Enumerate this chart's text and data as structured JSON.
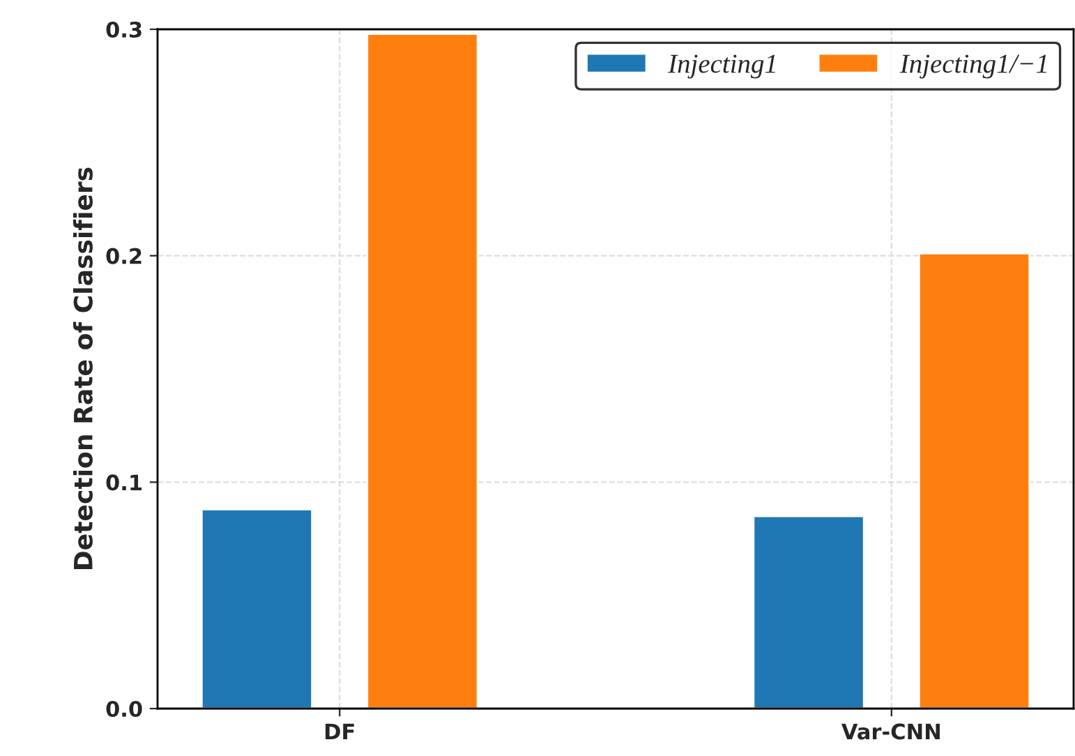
{
  "chart_data": {
    "type": "bar",
    "ylabel": "Detection Rate of Classifiers",
    "categories": [
      "DF",
      "Var-CNN"
    ],
    "series": [
      {
        "name": "Injecting1",
        "color": "#1f77b4",
        "values": [
          0.088,
          0.085
        ]
      },
      {
        "name": "Injecting1/−1",
        "color": "#ff7f0e",
        "values": [
          0.298,
          0.201
        ]
      }
    ],
    "ylim": [
      0,
      0.3
    ],
    "yticks": [
      {
        "value": 0,
        "label": "0.0"
      },
      0.1,
      0.2,
      0.3
    ],
    "grid": true,
    "legend": "top right"
  }
}
